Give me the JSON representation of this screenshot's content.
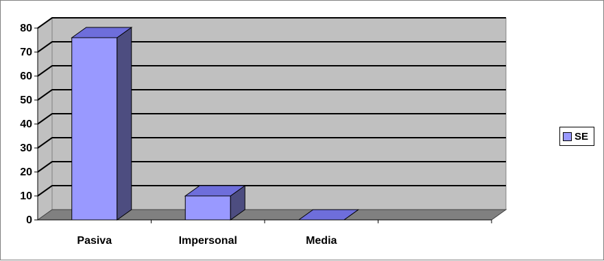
{
  "chart_data": {
    "type": "bar",
    "categories": [
      "Pasiva",
      "Impersonal",
      "Media"
    ],
    "series": [
      {
        "name": "SE",
        "values": [
          76,
          10,
          0
        ]
      }
    ],
    "y_ticks": [
      "0",
      "10",
      "20",
      "30",
      "40",
      "50",
      "60",
      "70",
      "80"
    ],
    "ylim": [
      0,
      80
    ],
    "grid": true,
    "legend_position": "right",
    "style": "3d-column",
    "colors": {
      "bar_front": "#9999ff",
      "bar_side": "#4d4d80",
      "bar_top": "#6e6edb",
      "wall": "#c0c0c0",
      "floor": "#808080"
    }
  },
  "legend": {
    "label": "SE"
  }
}
